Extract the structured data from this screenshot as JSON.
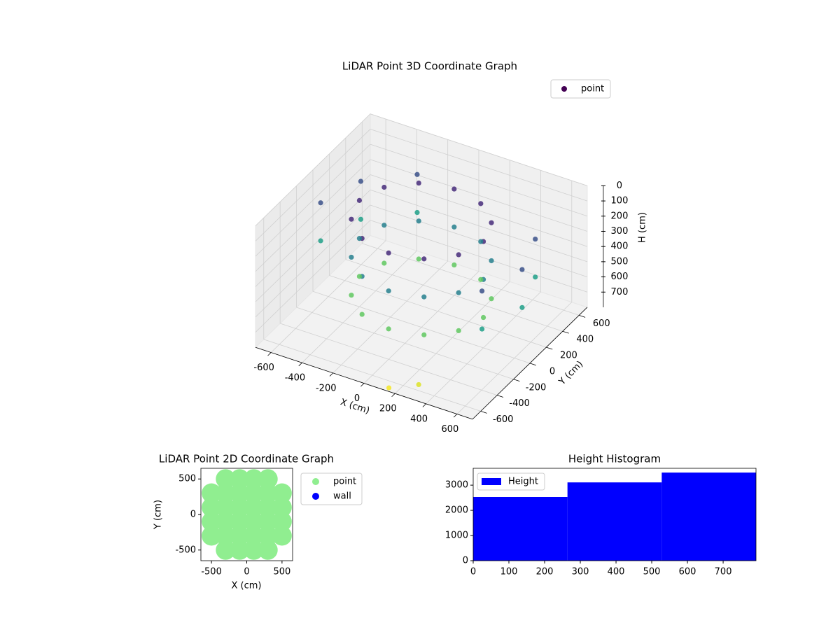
{
  "chart_data": [
    {
      "type": "scatter3d",
      "title": "LiDAR Point 3D Coordinate Graph",
      "xlabel": "X (cm)",
      "ylabel": "Y (cm)",
      "zlabel": "H (cm)",
      "xlim": [
        -700,
        700
      ],
      "ylim": [
        -700,
        700
      ],
      "zlim": [
        0,
        800
      ],
      "z_inverted": true,
      "xticks": [
        -600,
        -400,
        -200,
        0,
        200,
        400,
        600
      ],
      "yticks": [
        -600,
        -400,
        -200,
        0,
        200,
        400,
        600
      ],
      "zticks": [
        0,
        100,
        200,
        300,
        400,
        500,
        600,
        700
      ],
      "colormap": "viridis",
      "legend": "upper right",
      "series": [
        {
          "name": "point",
          "color": "#440154",
          "x": [
            400,
            346,
            200,
            0,
            -200,
            -346,
            -400,
            -346,
            -200,
            0,
            200,
            346,
            400,
            346,
            200,
            0,
            -200,
            -346,
            -400,
            -346,
            -200,
            0,
            200,
            346,
            400,
            346,
            200,
            0,
            -200,
            -346,
            -400,
            -346,
            -200,
            0,
            200,
            346,
            -325,
            -563,
            -650,
            563,
            650,
            563,
            -325,
            -563,
            -650,
            563,
            650,
            563,
            300,
            150
          ],
          "y": [
            0,
            200,
            346,
            400,
            346,
            200,
            0,
            -200,
            -346,
            -400,
            -346,
            -200,
            0,
            200,
            346,
            400,
            346,
            200,
            0,
            -200,
            -346,
            -400,
            -346,
            -200,
            0,
            200,
            346,
            400,
            346,
            200,
            0,
            -200,
            -346,
            -400,
            -346,
            -200,
            563,
            325,
            0,
            -325,
            0,
            325,
            563,
            325,
            0,
            -325,
            0,
            325,
            -600,
            -680
          ],
          "h": [
            100,
            100,
            100,
            100,
            100,
            100,
            100,
            100,
            100,
            100,
            100,
            100,
            350,
            350,
            350,
            350,
            350,
            350,
            350,
            350,
            350,
            350,
            350,
            350,
            600,
            600,
            600,
            600,
            600,
            600,
            600,
            600,
            600,
            600,
            600,
            600,
            200,
            200,
            200,
            200,
            200,
            200,
            450,
            450,
            450,
            450,
            450,
            450,
            760,
            790
          ]
        }
      ]
    },
    {
      "type": "scatter",
      "title": "LiDAR Point 2D Coordinate Graph",
      "xlabel": "X (cm)",
      "ylabel": "Y (cm)",
      "xlim": [
        -650,
        650
      ],
      "ylim": [
        -650,
        650
      ],
      "xticks": [
        -500,
        0,
        500
      ],
      "yticks": [
        -500,
        0,
        500
      ],
      "legend": "outside right",
      "series": [
        {
          "name": "point",
          "color": "#90ee90",
          "x": [
            -300,
            -100,
            100,
            300,
            -500,
            -300,
            -100,
            100,
            300,
            500,
            -500,
            -300,
            -100,
            100,
            300,
            500,
            -500,
            -300,
            -100,
            100,
            300,
            500,
            -500,
            -300,
            -100,
            100,
            300,
            500,
            -300,
            -100,
            100,
            300
          ],
          "y": [
            -500,
            -500,
            -500,
            -500,
            -300,
            -300,
            -300,
            -300,
            -300,
            -300,
            -100,
            -100,
            -100,
            -100,
            -100,
            -100,
            100,
            100,
            100,
            100,
            100,
            100,
            300,
            300,
            300,
            300,
            300,
            300,
            500,
            500,
            500,
            500
          ]
        },
        {
          "name": "wall",
          "color": "#0000ff",
          "x": [],
          "y": []
        }
      ]
    },
    {
      "type": "histogram",
      "title": "Height Histogram",
      "bins": [
        0,
        264,
        528,
        792
      ],
      "counts": [
        2530,
        3110,
        3500
      ],
      "xlim": [
        0,
        792
      ],
      "ylim": [
        0,
        3670
      ],
      "xticks": [
        0,
        100,
        200,
        300,
        400,
        500,
        600,
        700
      ],
      "yticks": [
        0,
        1000,
        2000,
        3000
      ],
      "legend": "upper left",
      "series": [
        {
          "name": "Height",
          "color": "#0000ff"
        }
      ]
    }
  ]
}
